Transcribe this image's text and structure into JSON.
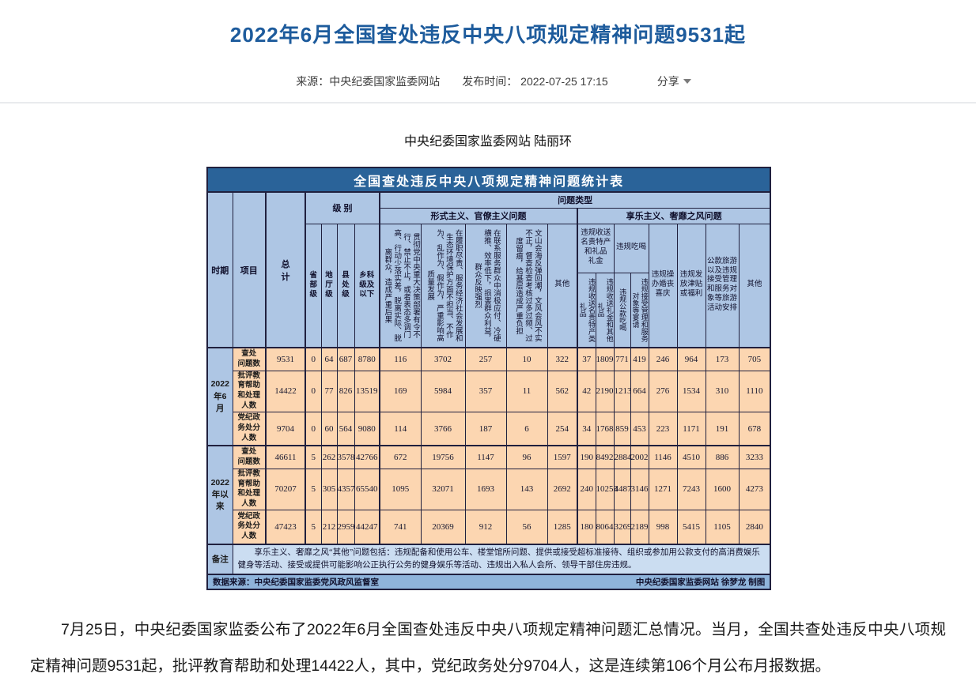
{
  "page": {
    "title": "2022年6月全国查处违反中央八项规定精神问题9531起",
    "meta": {
      "source": "来源：中央纪委国家监委网站",
      "time": "发布时间： 2022-07-25 17:15",
      "share": "分享"
    },
    "byline": "中央纪委国家监委网站 陆丽环",
    "paragraph": "7月25日，中央纪委国家监委公布了2022年6月全国查处违反中央八项规定精神问题汇总情况。当月，全国共查处违反中央八项规定精神问题9531起，批评教育帮助和处理14422人，其中，党纪政务处分9704人，这是连续第106个月公布月报数据。"
  },
  "table": {
    "title": "全国查处违反中央八项规定精神问题统计表",
    "headers": {
      "time": "时期",
      "item": "项目",
      "total": "总\n计",
      "level_group": "级 别",
      "levels": [
        "省\n部\n级",
        "地\n厅\n级",
        "县\n处\n级",
        "乡科\n级及\n以下"
      ],
      "type_group": "问题类型",
      "formalism_group": "形式主义、官僚主义问题",
      "formalism_cols": [
        "贯彻党中央重大决策部署有令不行、禁止不止，或者表态多调门高、行动少落实差，脱离实际、脱离群众，造成严重后果",
        "在履职尽责、服务经济社会发展和生态环境保护方面不担当、不作为、乱作为、假作为，严重影响高质量发展",
        "在联系服务群众中消极应付、冷硬横推、效率低下，损害群众利益，群众反映强烈",
        "文山会海反弹回潮，文风会风不实不正，督查检查考核过多过频、过度留痕，给基层造成严重负担",
        "其他"
      ],
      "hedonism_group": "享乐主义、奢靡之风问题",
      "gift_group": "违规收送\n名贵特产\n和礼品\n礼金",
      "gift_cols": [
        "违规收送名贵特产类礼品",
        "违规收送礼金和其他礼品"
      ],
      "eat_group": "违规吃喝",
      "eat_cols": [
        "违规公款吃喝",
        "违规接受管理和服务对象等宴请"
      ],
      "wedding": "违规操\n办婚丧\n喜庆",
      "allowance": "违规发\n放津贴\n或福利",
      "travel": "公款旅游\n以及违规\n接受管理\n和服务对\n象等旅游\n活动安排",
      "other": "其他"
    },
    "periods": [
      {
        "period": "2022\n年6\n月",
        "rows": [
          {
            "label": "查处\n问题数",
            "values": [
              9531,
              0,
              64,
              687,
              8780,
              116,
              3702,
              257,
              10,
              322,
              37,
              1809,
              771,
              419,
              246,
              964,
              173,
              705
            ]
          },
          {
            "label": "批评教\n育帮助\n和处理\n人数",
            "values": [
              14422,
              0,
              77,
              826,
              13519,
              169,
              5984,
              357,
              11,
              562,
              42,
              2190,
              1213,
              664,
              276,
              1534,
              310,
              1110
            ]
          },
          {
            "label": "党纪政\n务处分\n人数",
            "values": [
              9704,
              0,
              60,
              564,
              9080,
              114,
              3766,
              187,
              6,
              254,
              34,
              1768,
              859,
              453,
              223,
              1171,
              191,
              678
            ]
          }
        ]
      },
      {
        "period": "2022\n年以\n来",
        "rows": [
          {
            "label": "查处\n问题数",
            "values": [
              46611,
              5,
              262,
              3578,
              42766,
              672,
              19756,
              1147,
              96,
              1597,
              190,
              8492,
              2884,
              2002,
              1146,
              4510,
              886,
              3233
            ]
          },
          {
            "label": "批评教\n育帮助\n和处理\n人数",
            "values": [
              70207,
              5,
              305,
              4357,
              65540,
              1095,
              32071,
              1693,
              143,
              2692,
              240,
              10253,
              4487,
              3146,
              1271,
              7243,
              1600,
              4273
            ]
          },
          {
            "label": "党纪政\n务处分\n人数",
            "values": [
              47423,
              5,
              212,
              2959,
              44247,
              741,
              20369,
              912,
              56,
              1285,
              180,
              8064,
              3269,
              2189,
              998,
              5415,
              1105,
              2840
            ]
          }
        ]
      }
    ],
    "remark_label": "备注",
    "remark": "享乐主义、奢靡之风“其他”问题包括：违规配备和使用公车、楼堂馆所问题、提供或接受超标准接待、组织或参加用公款支付的高消费娱乐健身等活动、接受或提供可能影响公正执行公务的健身娱乐等活动、违规出入私人会所、领导干部住房违规。",
    "source_left": "数据来源：中央纪委国家监委党风政风监督室",
    "source_right": "中央纪委国家监委网站 徐梦龙 制图"
  }
}
